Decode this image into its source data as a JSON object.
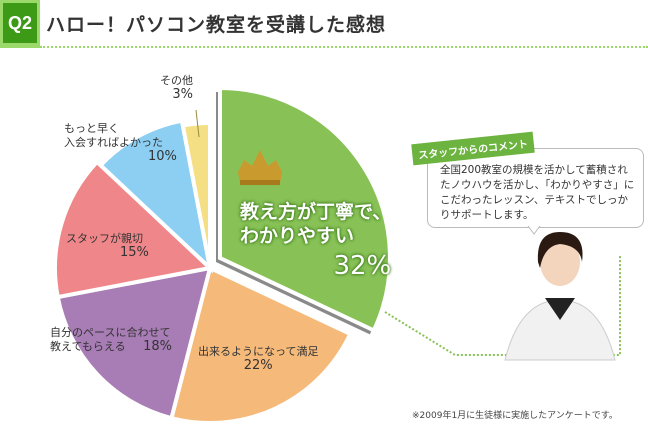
{
  "header": {
    "badge": "Q2",
    "title": "ハロー！パソコン教室を受講した感想"
  },
  "chart_data": {
    "type": "pie",
    "title": "ハロー！パソコン教室を受講した感想",
    "slices": [
      {
        "label": "教え方が丁寧で、わかりやすい",
        "value": 32,
        "pct": "32%",
        "color": "#88c257",
        "exploded": true
      },
      {
        "label": "出来るようになって満足",
        "value": 22,
        "pct": "22%",
        "color": "#f5b97a"
      },
      {
        "label": "自分のペースに合わせて教えてもらえる",
        "value": 18,
        "pct": "18%",
        "color": "#a87db5"
      },
      {
        "label": "スタッフが親切",
        "value": 15,
        "pct": "15%",
        "color": "#ef878a"
      },
      {
        "label": "もっと早く入会すればよかった",
        "value": 10,
        "pct": "10%",
        "color": "#8ccff3"
      },
      {
        "label": "その他",
        "value": 3,
        "pct": "3%",
        "color": "#f5df85"
      }
    ],
    "top_label_line1": "教え方が丁寧で、",
    "top_label_line2": "わかりやすい",
    "label_soon_1": "もっと早く",
    "label_soon_2": "入会すればよかった",
    "label_pace_1": "自分のペースに合わせて",
    "label_pace_2": "教えてもらえる"
  },
  "comment": {
    "tag": "スタッフからのコメント",
    "text": "全国200教室の規模を活かして蓄積されたノウハウを活かし、「わかりやすさ」にこだわったレッスン、テキストでしっかりサポートします。"
  },
  "footnote": "※2009年1月に生徒様に実施したアンケートです。"
}
